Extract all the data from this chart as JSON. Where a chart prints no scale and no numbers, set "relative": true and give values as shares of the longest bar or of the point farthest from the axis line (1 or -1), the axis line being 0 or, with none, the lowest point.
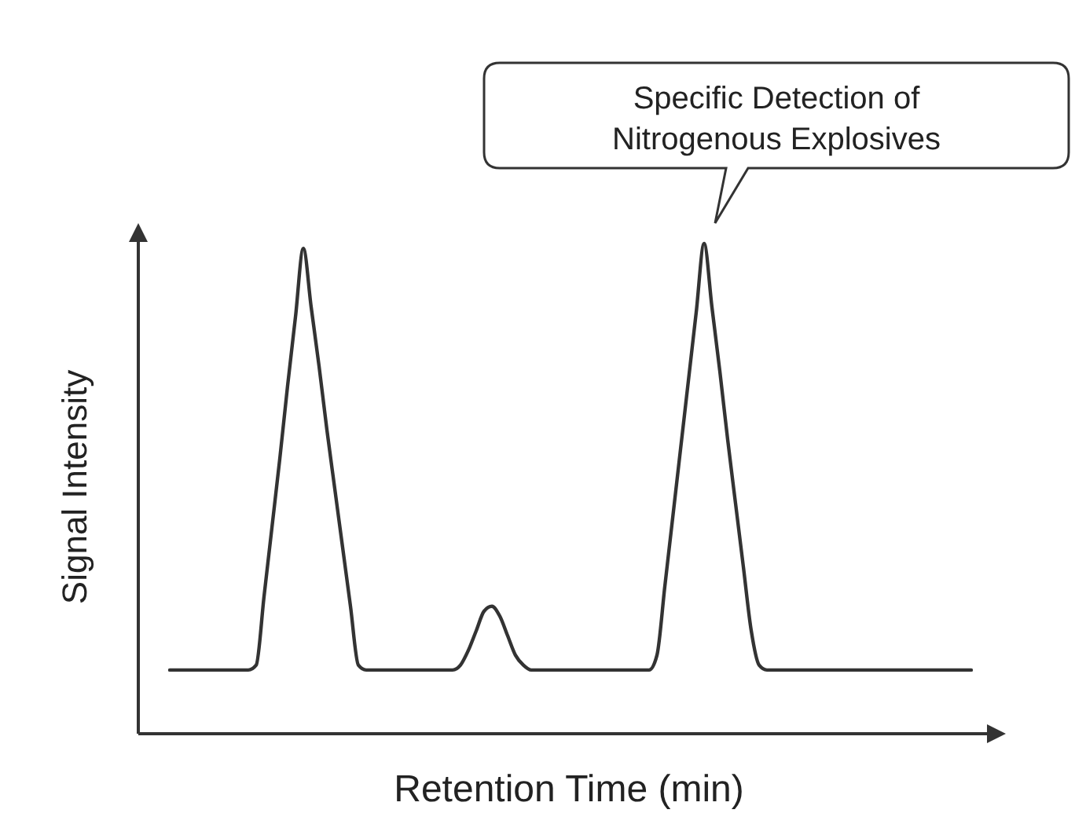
{
  "chart_data": {
    "type": "line",
    "relative": true,
    "xlabel": "Retention Time (min)",
    "ylabel": "Signal Intensity",
    "annotations": [
      "Specific Detection of Nitrogenous Explosives"
    ],
    "categories": [
      null,
      null,
      null,
      null,
      null,
      null,
      null,
      null,
      null,
      null,
      null,
      null,
      null,
      null,
      null,
      null,
      null,
      null,
      null,
      null,
      null,
      null,
      null,
      null,
      null,
      null,
      null,
      null,
      null,
      null,
      null,
      null,
      null,
      null,
      null,
      null,
      null,
      null,
      null,
      null,
      null,
      null,
      null,
      null,
      null,
      null,
      null,
      null,
      null,
      null,
      null,
      null,
      null,
      null,
      null,
      null,
      null,
      null,
      null,
      null,
      null,
      null,
      null,
      null,
      null,
      null,
      null,
      null,
      null,
      null,
      null,
      null,
      null,
      null,
      null,
      null,
      null,
      null,
      null,
      null,
      null,
      null,
      null,
      null,
      null,
      null,
      null,
      null,
      null,
      null,
      null,
      null,
      null,
      null,
      null,
      null,
      null,
      null,
      null,
      null,
      null,
      null,
      null
    ],
    "series": [
      {
        "color": "#333333",
        "values": [
          0.13,
          0.13,
          0.13,
          0.13,
          0.13,
          0.13,
          0.13,
          0.13,
          0.13,
          0.13,
          0.13,
          0.14,
          0.28,
          0.42,
          0.56,
          0.71,
          0.85,
          0.99,
          0.87,
          0.75,
          0.62,
          0.5,
          0.38,
          0.26,
          0.14,
          0.13,
          0.13,
          0.13,
          0.13,
          0.13,
          0.13,
          0.13,
          0.13,
          0.13,
          0.13,
          0.13,
          0.13,
          0.14,
          0.17,
          0.21,
          0.25,
          0.26,
          0.24,
          0.2,
          0.16,
          0.14,
          0.13,
          0.13,
          0.13,
          0.13,
          0.13,
          0.13,
          0.13,
          0.13,
          0.13,
          0.13,
          0.13,
          0.13,
          0.13,
          0.13,
          0.13,
          0.13,
          0.16,
          0.3,
          0.44,
          0.58,
          0.72,
          0.86,
          1,
          0.87,
          0.74,
          0.6,
          0.47,
          0.34,
          0.21,
          0.14,
          0.13,
          0.13,
          0.13,
          0.13,
          0.13,
          0.13,
          0.13,
          0.13,
          0.13,
          0.13,
          0.13,
          0.13,
          0.13,
          0.13,
          0.13,
          0.13,
          0.13,
          0.13,
          0.13,
          0.13,
          0.13,
          0.13,
          0.13,
          0.13,
          0.13,
          0.13,
          0.13
        ]
      }
    ]
  }
}
